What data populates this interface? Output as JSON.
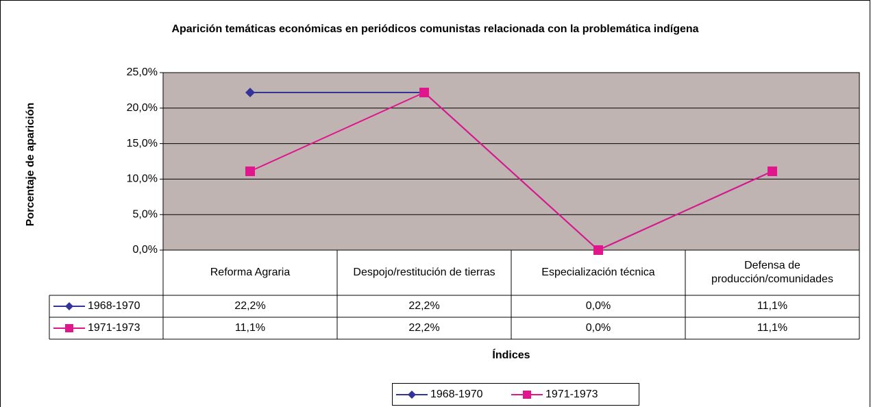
{
  "chart_data": {
    "type": "line",
    "title": "Aparición temáticas económicas en periódicos comunistas relacionada con la problemática indígena",
    "x_label": "Índices",
    "y_label": "Porcentaje de aparición",
    "categories": [
      "Reforma Agraria",
      "Despojo/restitución de tierras",
      "Especialización técnica",
      "Defensa de producción/comunidades"
    ],
    "series": [
      {
        "name": "1968-1970",
        "color": "#333399",
        "marker": "diamond",
        "values": [
          22.2,
          22.2,
          0,
          11.1
        ],
        "value_labels": [
          "22,2%",
          "22,2%",
          "0,0%",
          "11,1%"
        ]
      },
      {
        "name": "1971-1973",
        "color": "#e0168c",
        "marker": "square",
        "values": [
          11.1,
          22.2,
          0,
          11.1
        ],
        "value_labels": [
          "11,1%",
          "22,2%",
          "0,0%",
          "11,1%"
        ]
      }
    ],
    "ylim": [
      0,
      25
    ],
    "yticks": [
      {
        "value": 0,
        "label": "0,0%"
      },
      {
        "value": 5,
        "label": "5,0%"
      },
      {
        "value": 10,
        "label": "10,0%"
      },
      {
        "value": 15,
        "label": "15,0%"
      },
      {
        "value": 20,
        "label": "20,0%"
      },
      {
        "value": 25,
        "label": "25,0%"
      }
    ],
    "grid": true,
    "plot_background": "#c0b4b2",
    "legend": "bottom"
  }
}
